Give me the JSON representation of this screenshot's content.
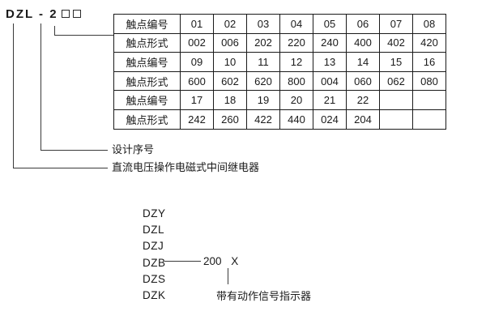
{
  "model": {
    "prefix": "DZL - 2"
  },
  "annotations": {
    "design_serial": "设计序号",
    "relay_type": "直流电压操作电磁式中间继电器",
    "indicator_note": "带有动作信号指示器"
  },
  "table": {
    "rows": [
      {
        "label": "触点编号",
        "values": [
          "01",
          "02",
          "03",
          "04",
          "05",
          "06",
          "07",
          "08"
        ]
      },
      {
        "label": "触点形式",
        "values": [
          "002",
          "006",
          "202",
          "220",
          "240",
          "400",
          "402",
          "420"
        ]
      },
      {
        "label": "触点编号",
        "values": [
          "09",
          "10",
          "11",
          "12",
          "13",
          "14",
          "15",
          "16"
        ]
      },
      {
        "label": "触点形式",
        "values": [
          "600",
          "602",
          "620",
          "800",
          "004",
          "060",
          "062",
          "080"
        ]
      },
      {
        "label": "触点编号",
        "values": [
          "17",
          "18",
          "19",
          "20",
          "21",
          "22",
          "",
          ""
        ]
      },
      {
        "label": "触点形式",
        "values": [
          "242",
          "260",
          "422",
          "440",
          "024",
          "204",
          "",
          ""
        ]
      }
    ]
  },
  "series": {
    "items": [
      "DZY",
      "DZL",
      "DZJ",
      "DZB",
      "DZS",
      "DZK"
    ]
  },
  "code": {
    "value": "200",
    "suffix": "X"
  },
  "colors": {
    "background": "#ffffff",
    "text": "#1a1a1a",
    "line": "#3a3a3a",
    "table_border": "#1a1a1a"
  }
}
